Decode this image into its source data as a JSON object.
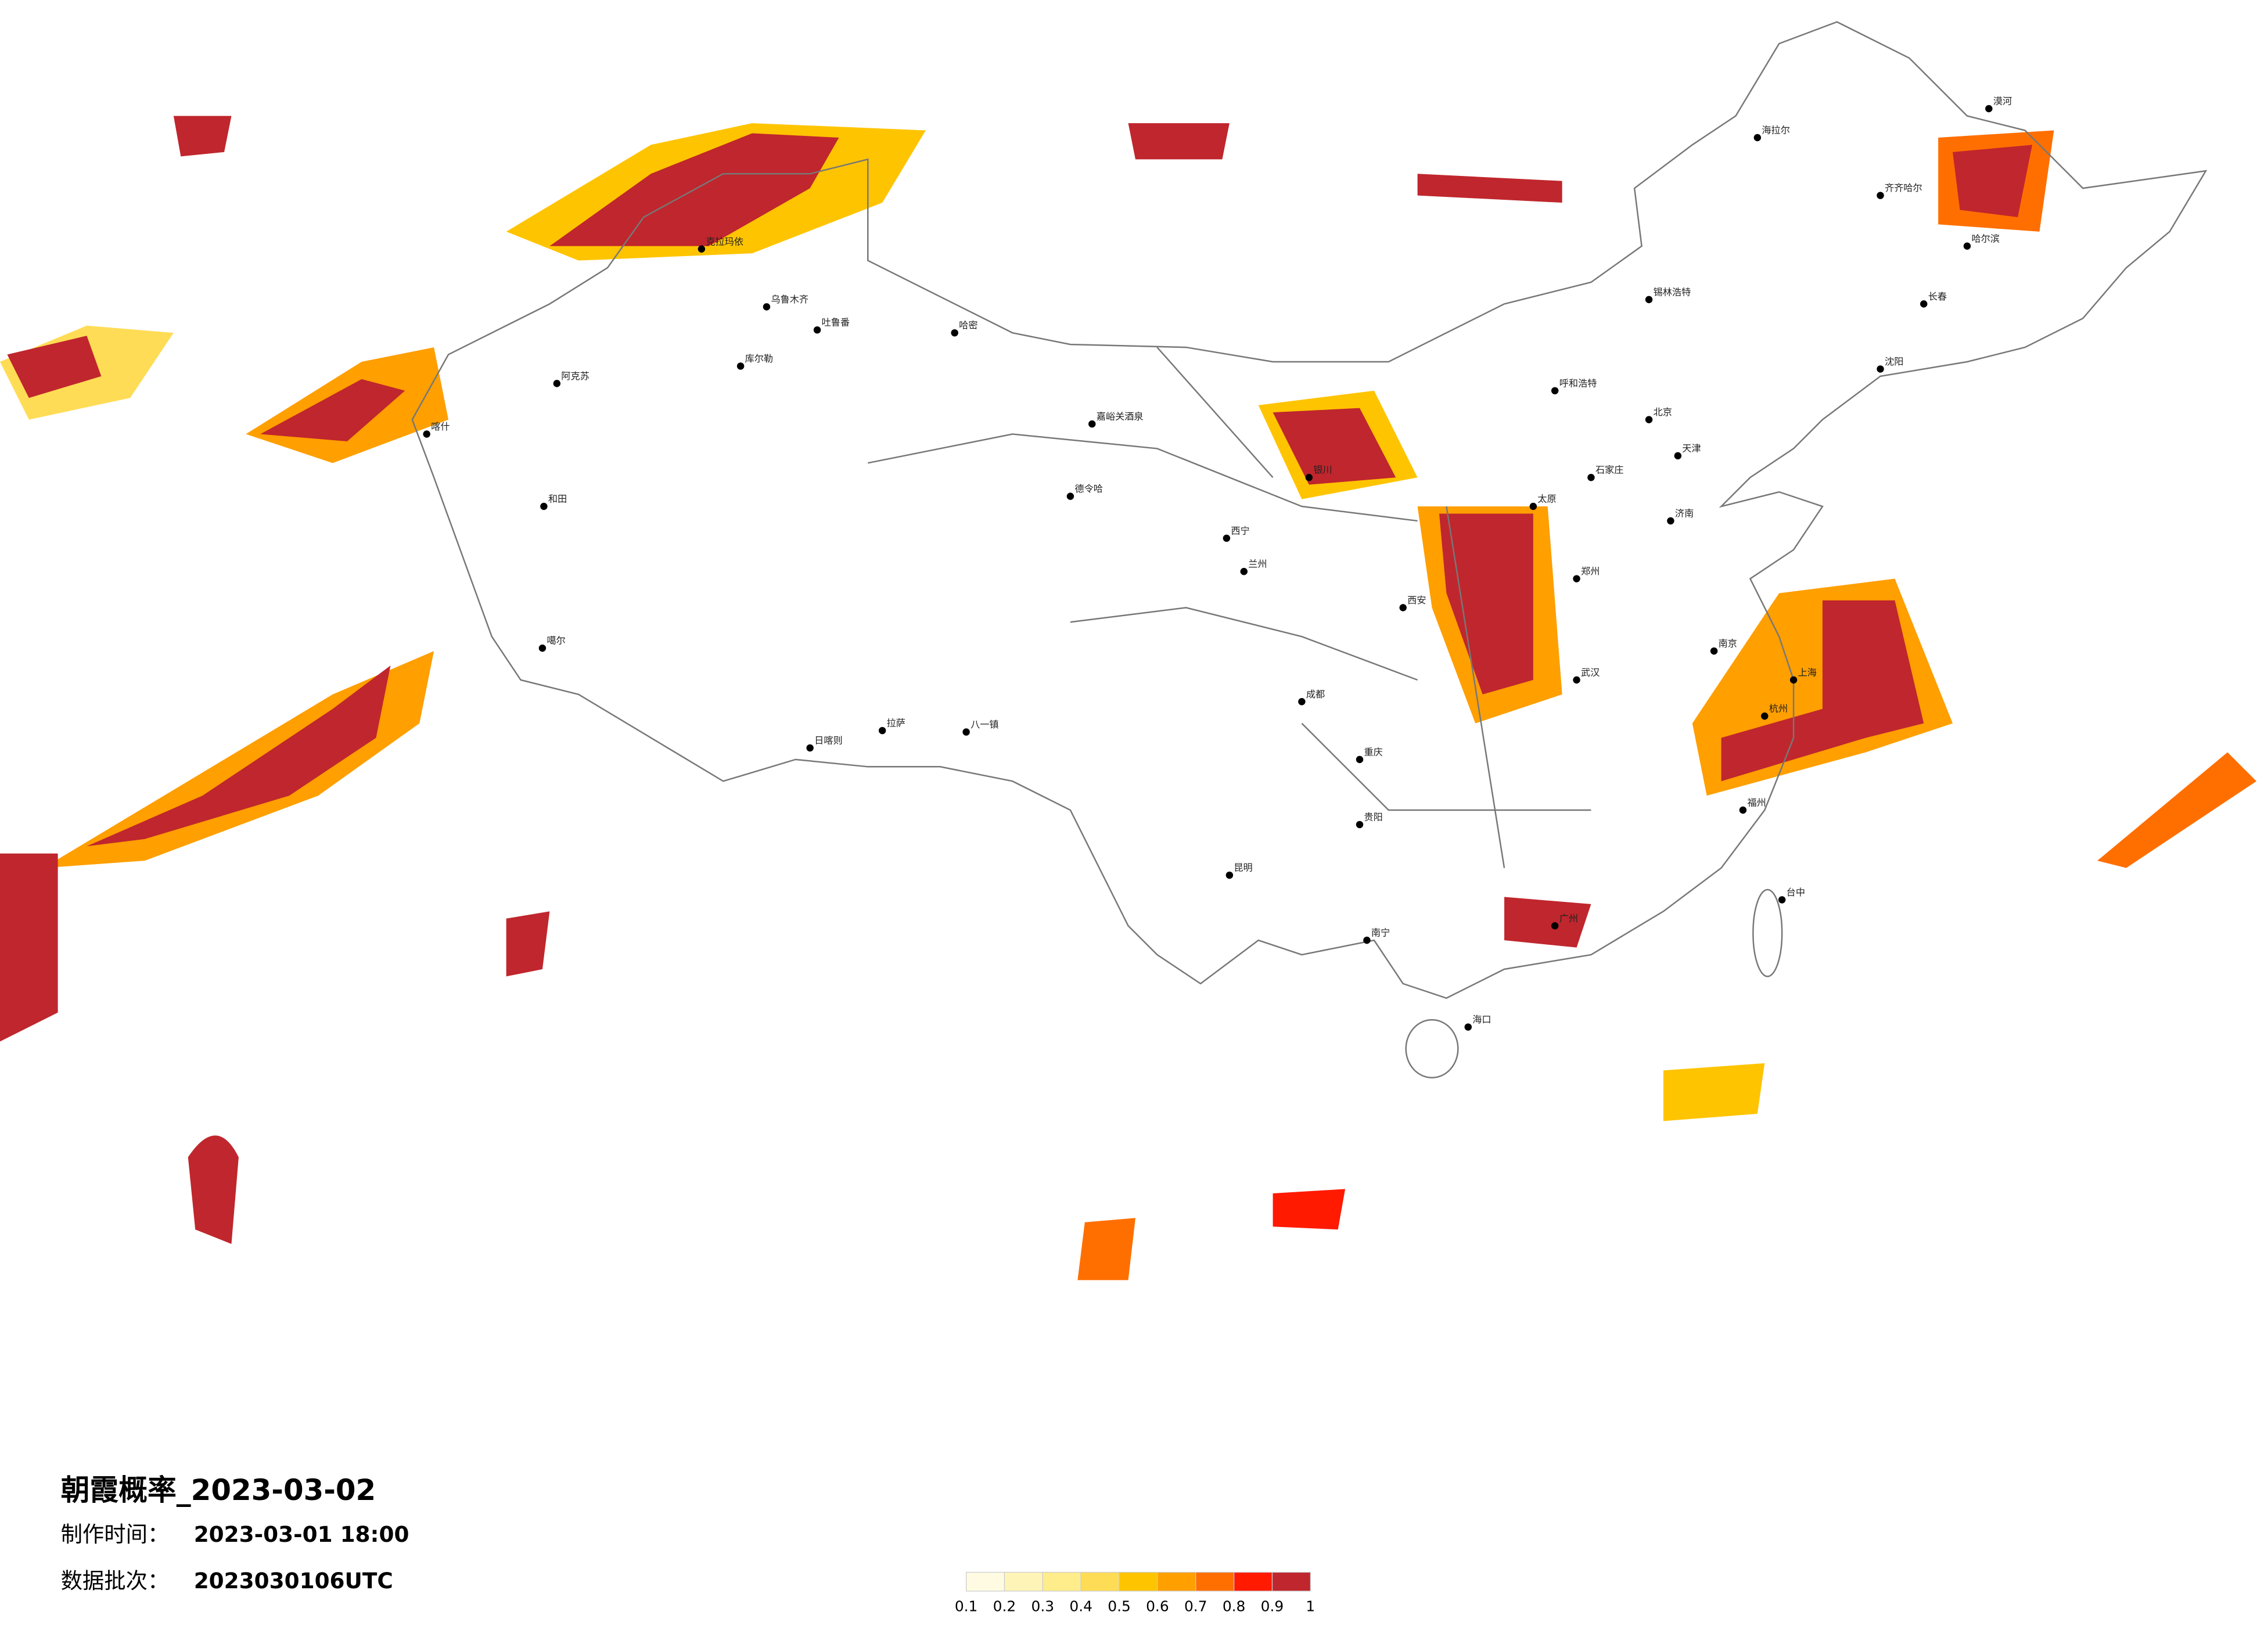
{
  "title": "朝霞概率_2023-03-02",
  "made_label": "制作时间：",
  "made_time": "2023-03-01 18:00",
  "batch_label": "数据批次：",
  "batch": "2023030106UTC",
  "legend": {
    "ticks": [
      "0.1",
      "0.2",
      "0.3",
      "0.4",
      "0.5",
      "0.6",
      "0.7",
      "0.8",
      "0.9",
      "1"
    ],
    "colors": [
      "#fffbe3",
      "#fff4b8",
      "#ffec8a",
      "#ffdc55",
      "#ffc400",
      "#ff9f00",
      "#ff6f00",
      "#ff1a00",
      "#c0262d"
    ]
  },
  "cities": [
    "克拉玛依",
    "乌鲁木齐",
    "吐鲁番",
    "哈密",
    "库尔勒",
    "阿克苏",
    "和田",
    "喀什",
    "噶尔",
    "日喀则",
    "拉萨",
    "八一镇",
    "嘉峪关酒泉",
    "德令哈",
    "西宁",
    "兰州",
    "银川",
    "呼和浩特",
    "北京",
    "天津",
    "石家庄",
    "太原",
    "济南",
    "郑州",
    "西安",
    "武汉",
    "南京",
    "上海",
    "杭州",
    "成都",
    "重庆",
    "昆明",
    "贵阳",
    "南宁",
    "广州",
    "福州",
    "台中",
    "海口",
    "长春",
    "哈尔滨",
    "沈阳",
    "海拉尔",
    "漠河",
    "齐齐哈尔",
    "锡林浩特"
  ]
}
